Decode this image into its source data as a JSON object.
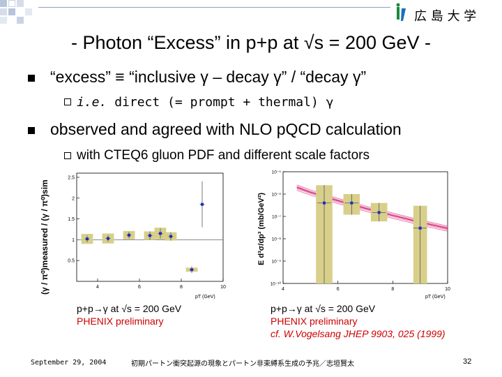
{
  "header": {
    "logo_text": "広 島 大 学",
    "title": "- Photon “Excess” in p+p at √s = 200 GeV -"
  },
  "bullets": [
    {
      "text": "“excess” ≡ “inclusive γ – decay γ” / “decay γ”",
      "sub": {
        "italic": "i.e.",
        "text": " direct (= prompt + thermal) γ"
      }
    },
    {
      "text": "observed and agreed with NLO pQCD calculation",
      "sub": {
        "text": "with CTEQ6 gluon PDF and different scale factors"
      }
    }
  ],
  "left_plot": {
    "ylabel": "(γ / π⁰)measured / (γ / π⁰)sim",
    "xlabel": "pT (GeV)",
    "yticks": [
      "0.5",
      "1",
      "1.5",
      "2",
      "2.5"
    ],
    "xticks": [
      "4",
      "6",
      "8",
      "10"
    ],
    "caption1": "p+p→γ at √s = 200 GeV",
    "caption2": "PHENIX preliminary"
  },
  "right_plot": {
    "ylabel": "E d³σ/dp³ (mb/GeV²)",
    "xlabel": "pT (GeV)",
    "yticks": [
      "10⁻¹⁰",
      "10⁻⁹",
      "10⁻⁸",
      "10⁻⁷",
      "10⁻⁶",
      "10⁻⁵"
    ],
    "xticks": [
      "4",
      "6",
      "8",
      "10"
    ],
    "caption1": "p+p→γ at √s = 200 GeV",
    "caption2": "PHENIX preliminary",
    "caption3": "cf. W.Vogelsang JHEP 9903, 025 (1999)"
  },
  "chart_data": [
    {
      "type": "scatter",
      "xlabel": "pT (GeV)",
      "ylabel": "(γ / π⁰)measured / (γ / π⁰)sim",
      "xlim": [
        3,
        10
      ],
      "ylim": [
        0,
        2.6
      ],
      "reference_line": 1.0,
      "x": [
        3.5,
        4.5,
        5.5,
        6.5,
        7.0,
        7.5,
        8.5,
        9.0
      ],
      "y": [
        1.02,
        1.03,
        1.11,
        1.1,
        1.15,
        1.08,
        0.28,
        1.85
      ],
      "yerr": [
        0.08,
        0.08,
        0.08,
        0.1,
        0.12,
        0.1,
        0.08,
        0.55
      ],
      "syst": [
        0.12,
        0.12,
        0.1,
        0.1,
        0.14,
        0.1,
        0.05,
        0.0
      ]
    },
    {
      "type": "scatter",
      "xlabel": "pT (GeV)",
      "ylabel": "E d³σ/dp³ (mb/GeV²)",
      "yscale": "log",
      "xlim": [
        4,
        10
      ],
      "ylim": [
        1e-10,
        1e-05
      ],
      "x": [
        5.5,
        6.5,
        7.5,
        9.0
      ],
      "y": [
        4e-07,
        4e-07,
        1.5e-07,
        3e-08
      ],
      "ylow": [
        1e-10,
        1.2e-07,
        6e-08,
        1e-10
      ],
      "yhigh": [
        2.5e-06,
        1e-06,
        4e-07,
        3e-07
      ],
      "nlo_bands": [
        {
          "x": [
            4.5,
            5,
            6,
            7,
            8,
            9,
            10
          ],
          "y": [
            2e-06,
            1.2e-06,
            5e-07,
            2.3e-07,
            1.1e-07,
            5.5e-08,
            2.9e-08
          ]
        }
      ]
    }
  ],
  "footer": {
    "date": "September 29, 2004",
    "center": "初期パートン衝突起源の現象とパートン非束縛系生成の予兆／志垣賢太",
    "page": "32"
  }
}
